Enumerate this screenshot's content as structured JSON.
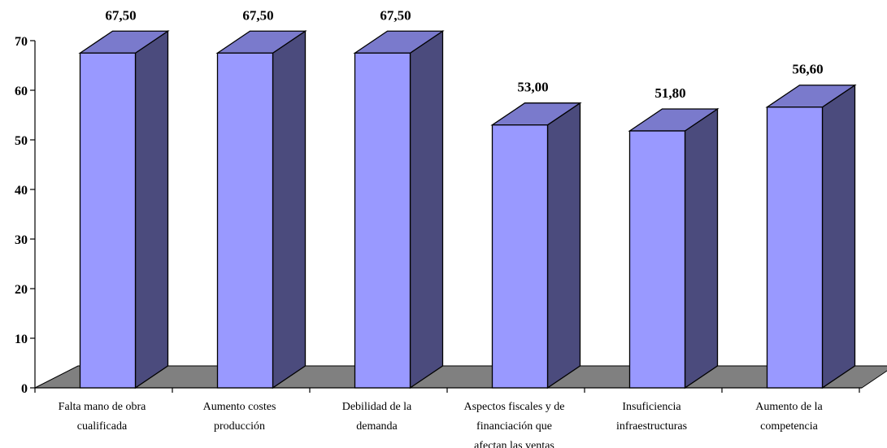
{
  "chart_data": {
    "type": "bar",
    "categories": [
      [
        "Falta mano de obra",
        "cualificada"
      ],
      [
        "Aumento costes",
        "producción"
      ],
      [
        "Debilidad de la",
        "demanda"
      ],
      [
        "Aspectos fiscales y de",
        "financiación que",
        "afectan las ventas"
      ],
      [
        "Insuficiencia",
        "infraestructuras"
      ],
      [
        "Aumento de la",
        "competencia"
      ]
    ],
    "values": [
      67.5,
      67.5,
      67.5,
      53.0,
      51.8,
      56.6
    ],
    "data_labels": [
      "67,50",
      "67,50",
      "67,50",
      "53,00",
      "51,80",
      "56,60"
    ],
    "ylim": [
      0,
      70
    ],
    "yticks": [
      "0",
      "10",
      "20",
      "30",
      "40",
      "50",
      "60",
      "70"
    ],
    "grid": false,
    "colors": {
      "bar_front": "#9999ff",
      "bar_side": "#4b4b7d",
      "bar_top": "#7a7acc",
      "floor": "#808080"
    }
  }
}
